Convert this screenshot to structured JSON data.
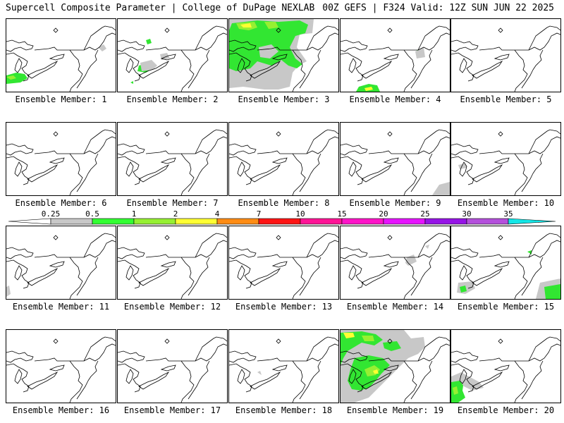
{
  "header": {
    "left": "Supercell Composite Parameter | College of DuPage NEXLAB",
    "right": "00Z GEFS | F324 Valid: 12Z SUN JUN 22 2025"
  },
  "members": [
    {
      "label": "Ensemble Member: 1"
    },
    {
      "label": "Ensemble Member: 2"
    },
    {
      "label": "Ensemble Member: 3"
    },
    {
      "label": "Ensemble Member: 4"
    },
    {
      "label": "Ensemble Member: 5"
    },
    {
      "label": "Ensemble Member: 6"
    },
    {
      "label": "Ensemble Member: 7"
    },
    {
      "label": "Ensemble Member: 8"
    },
    {
      "label": "Ensemble Member: 9"
    },
    {
      "label": "Ensemble Member: 10"
    },
    {
      "label": "Ensemble Member: 11"
    },
    {
      "label": "Ensemble Member: 12"
    },
    {
      "label": "Ensemble Member: 13"
    },
    {
      "label": "Ensemble Member: 14"
    },
    {
      "label": "Ensemble Member: 15"
    },
    {
      "label": "Ensemble Member: 16"
    },
    {
      "label": "Ensemble Member: 17"
    },
    {
      "label": "Ensemble Member: 18"
    },
    {
      "label": "Ensemble Member: 19"
    },
    {
      "label": "Ensemble Member: 20"
    }
  ],
  "colorbar": {
    "ticks": [
      "0.25",
      "0.5",
      "1",
      "2",
      "4",
      "7",
      "10",
      "15",
      "20",
      "25",
      "30",
      "35"
    ],
    "colors": [
      "#c8c8c8",
      "#32ff32",
      "#96f032",
      "#ffff32",
      "#ff8c14",
      "#ff1414",
      "#ff1496",
      "#ff14c8",
      "#e614ff",
      "#9614e6",
      "#b450dc",
      "#14e6e6"
    ]
  },
  "colors": {
    "gray": "#c8c8c8",
    "green": "#32e632",
    "lightgreen": "#96f032",
    "yellow": "#ffff32"
  }
}
